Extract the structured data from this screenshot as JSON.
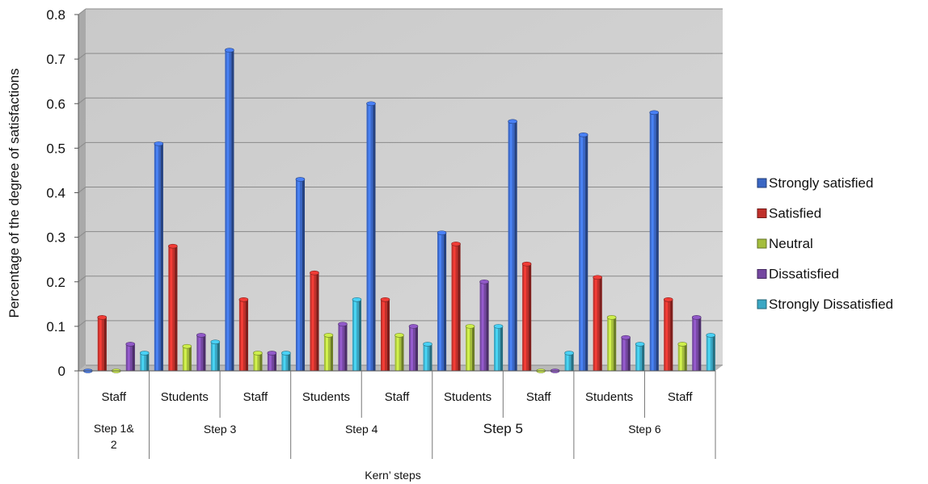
{
  "chart_data": {
    "type": "bar",
    "title": "",
    "xlabel": "Kern’ steps",
    "ylabel": "Percentage of the degree of satisfactions",
    "ylim": [
      0,
      0.8
    ],
    "yticks": [
      "0",
      "0.1",
      "0.2",
      "0.3",
      "0.4",
      "0.5",
      "0.6",
      "0.7",
      "0.8"
    ],
    "grid": true,
    "legend_position": "right",
    "categories": [
      "Staff",
      "Students",
      "Staff",
      "Students",
      "Staff",
      "Students",
      "Staff",
      "Students",
      "Staff"
    ],
    "groups": [
      {
        "label": "Step 1& 2",
        "label_lines": [
          "Step 1&",
          "2"
        ],
        "span": 1
      },
      {
        "label": "Step 3",
        "label_lines": [
          "Step 3"
        ],
        "span": 2
      },
      {
        "label": "Step 4",
        "label_lines": [
          "Step 4"
        ],
        "span": 2
      },
      {
        "label": "Step 5",
        "label_lines": [
          "Step 5"
        ],
        "span": 2,
        "emphasis": true
      },
      {
        "label": "Step 6",
        "label_lines": [
          "Step 6"
        ],
        "span": 2
      }
    ],
    "series": [
      {
        "name": "Strongly satisfied",
        "color": "#3a66c4",
        "values": [
          0.0,
          0.51,
          0.72,
          0.43,
          0.6,
          0.31,
          0.56,
          0.53,
          0.58
        ]
      },
      {
        "name": "Satisfied",
        "color": "#c0302b",
        "values": [
          0.12,
          0.28,
          0.16,
          0.22,
          0.16,
          0.285,
          0.24,
          0.21,
          0.16
        ]
      },
      {
        "name": "Neutral",
        "color": "#a4be3c",
        "values": [
          0.0,
          0.055,
          0.04,
          0.08,
          0.08,
          0.1,
          0.0,
          0.12,
          0.06
        ]
      },
      {
        "name": "Dissatisfied",
        "color": "#7447a0",
        "values": [
          0.06,
          0.08,
          0.04,
          0.105,
          0.1,
          0.2,
          0.0,
          0.075,
          0.12
        ]
      },
      {
        "name": "Strongly Dissatisfied",
        "color": "#3aa7c4",
        "values": [
          0.04,
          0.065,
          0.04,
          0.16,
          0.06,
          0.1,
          0.04,
          0.06,
          0.08
        ]
      }
    ]
  }
}
